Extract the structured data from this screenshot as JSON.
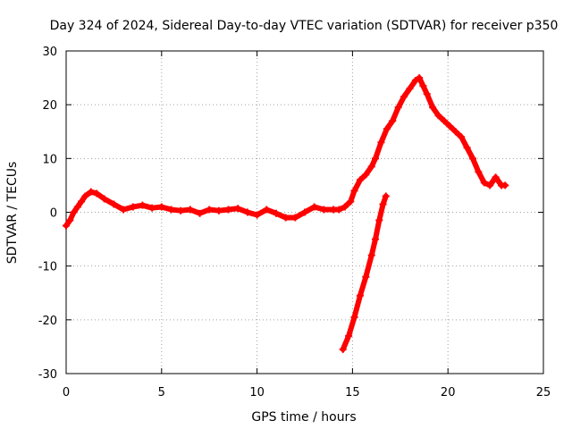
{
  "chart_data": {
    "type": "scatter",
    "title": "Day 324 of 2024, Sidereal Day-to-day VTEC variation (SDTVAR) for receiver p350",
    "xlabel": "GPS time / hours",
    "ylabel": "SDTVAR / TECUs",
    "xlim": [
      0,
      25
    ],
    "ylim": [
      -30,
      30
    ],
    "xticks": [
      0,
      5,
      10,
      15,
      20,
      25
    ],
    "xtick_labels": [
      "0",
      "5",
      "10",
      "15",
      "20",
      "25"
    ],
    "yticks": [
      -30,
      -20,
      -10,
      0,
      10,
      20,
      30
    ],
    "ytick_labels": [
      "-30",
      "-20",
      "-10",
      "0",
      "10",
      "20",
      "30"
    ],
    "grid": true,
    "legend": "none",
    "marker": "+",
    "color": "#ff0000",
    "series": [
      {
        "name": "main-track",
        "points": [
          [
            0.0,
            -2.5
          ],
          [
            0.2,
            -1.5
          ],
          [
            0.4,
            0.0
          ],
          [
            0.6,
            1.0
          ],
          [
            0.8,
            2.0
          ],
          [
            1.0,
            3.0
          ],
          [
            1.3,
            3.8
          ],
          [
            1.6,
            3.5
          ],
          [
            2.0,
            2.5
          ],
          [
            2.5,
            1.5
          ],
          [
            3.0,
            0.5
          ],
          [
            3.5,
            1.0
          ],
          [
            4.0,
            1.3
          ],
          [
            4.5,
            0.8
          ],
          [
            5.0,
            1.0
          ],
          [
            5.5,
            0.5
          ],
          [
            6.0,
            0.3
          ],
          [
            6.5,
            0.5
          ],
          [
            7.0,
            -0.2
          ],
          [
            7.5,
            0.5
          ],
          [
            8.0,
            0.3
          ],
          [
            8.5,
            0.5
          ],
          [
            9.0,
            0.7
          ],
          [
            9.5,
            0.0
          ],
          [
            10.0,
            -0.5
          ],
          [
            10.5,
            0.5
          ],
          [
            11.0,
            -0.2
          ],
          [
            11.5,
            -1.0
          ],
          [
            12.0,
            -1.0
          ],
          [
            12.5,
            0.0
          ],
          [
            13.0,
            1.0
          ],
          [
            13.5,
            0.5
          ],
          [
            14.0,
            0.5
          ],
          [
            14.3,
            0.5
          ],
          [
            14.6,
            1.0
          ],
          [
            14.9,
            2.0
          ],
          [
            15.1,
            4.0
          ],
          [
            15.4,
            6.0
          ],
          [
            15.7,
            7.0
          ],
          [
            16.0,
            8.5
          ],
          [
            16.2,
            10.0
          ],
          [
            16.5,
            13.0
          ],
          [
            16.8,
            15.5
          ],
          [
            17.1,
            17.0
          ],
          [
            17.4,
            19.5
          ],
          [
            17.7,
            21.5
          ],
          [
            18.0,
            23.0
          ],
          [
            18.3,
            24.5
          ],
          [
            18.5,
            25.0
          ],
          [
            18.7,
            23.5
          ],
          [
            18.9,
            22.0
          ],
          [
            19.2,
            19.5
          ],
          [
            19.5,
            18.0
          ],
          [
            19.8,
            17.0
          ],
          [
            20.1,
            16.0
          ],
          [
            20.4,
            15.0
          ],
          [
            20.7,
            14.0
          ],
          [
            21.0,
            12.0
          ],
          [
            21.3,
            10.0
          ],
          [
            21.6,
            7.5
          ],
          [
            21.9,
            5.5
          ],
          [
            22.2,
            5.0
          ],
          [
            22.5,
            6.5
          ],
          [
            22.8,
            5.0
          ],
          [
            23.0,
            5.0
          ]
        ]
      },
      {
        "name": "secondary-track",
        "points": [
          [
            14.5,
            -25.5
          ],
          [
            14.8,
            -23.0
          ],
          [
            15.1,
            -19.5
          ],
          [
            15.4,
            -15.5
          ],
          [
            15.7,
            -12.0
          ],
          [
            16.0,
            -8.0
          ],
          [
            16.2,
            -5.0
          ],
          [
            16.4,
            -1.5
          ],
          [
            16.6,
            1.5
          ],
          [
            16.75,
            3.0
          ]
        ]
      }
    ]
  }
}
